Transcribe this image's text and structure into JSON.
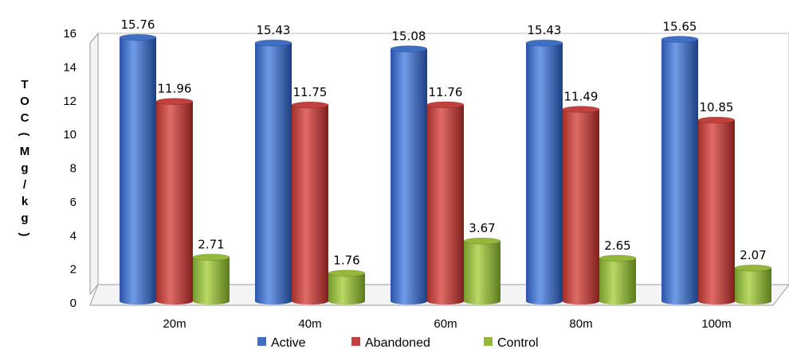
{
  "chart_data": {
    "type": "bar",
    "title": "",
    "xlabel": "",
    "ylabel": "TOC(Mg/kg)",
    "ylim": [
      0,
      16
    ],
    "yticks": [
      0,
      2,
      4,
      6,
      8,
      10,
      12,
      14,
      16
    ],
    "categories": [
      "20m",
      "40m",
      "60m",
      "80m",
      "100m"
    ],
    "series": [
      {
        "name": "Active",
        "color": "#3f6fc4",
        "values": [
          15.76,
          15.43,
          15.08,
          15.43,
          15.65
        ]
      },
      {
        "name": "Abandoned",
        "color": "#c0413d",
        "values": [
          11.96,
          11.75,
          11.76,
          11.49,
          10.85
        ]
      },
      {
        "name": "Control",
        "color": "#93b83b",
        "values": [
          2.71,
          1.76,
          3.67,
          2.65,
          2.07
        ]
      }
    ],
    "data_labels": true,
    "grid": false,
    "legend_position": "bottom"
  }
}
